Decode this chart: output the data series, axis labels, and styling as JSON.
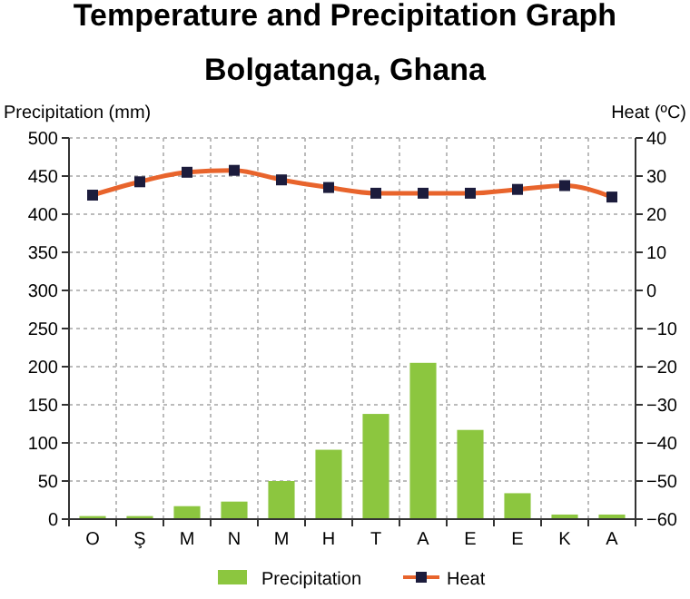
{
  "chart_data": {
    "type": "bar",
    "title": "Temperature and Precipitation Graph",
    "subtitle": "Bolgatanga, Ghana",
    "ylabel": "Precipitation (mm)",
    "y2label": "Heat (ºC)",
    "categories": [
      "O",
      "Ş",
      "M",
      "N",
      "M",
      "H",
      "T",
      "A",
      "E",
      "E",
      "K",
      "A"
    ],
    "series": [
      {
        "name": "Precipitation",
        "color": "#8cc63f",
        "values": [
          4,
          4,
          17,
          23,
          50,
          91,
          138,
          205,
          117,
          34,
          6,
          6
        ]
      },
      {
        "name": "Heat",
        "type": "line",
        "axis": "y2",
        "color": "#e8642c",
        "marker": "square",
        "values": [
          25,
          28.5,
          31,
          31.5,
          29,
          27,
          25.5,
          25.5,
          25.5,
          26.5,
          27.5,
          24.5
        ]
      }
    ],
    "ylim": [
      0,
      500
    ],
    "yticks": [
      0,
      50,
      100,
      150,
      200,
      250,
      300,
      350,
      400,
      450,
      500
    ],
    "y2lim": [
      -60,
      40
    ],
    "y2ticks": [
      {
        "value": -60,
        "label": "−60"
      },
      {
        "value": -50,
        "label": "−50"
      },
      {
        "value": -40,
        "label": "−40"
      },
      {
        "value": -30,
        "label": "−30"
      },
      {
        "value": -20,
        "label": "−20"
      },
      {
        "value": -10,
        "label": "−10"
      },
      0,
      10,
      20,
      30,
      40
    ],
    "grid": true,
    "legend": "bottom"
  }
}
